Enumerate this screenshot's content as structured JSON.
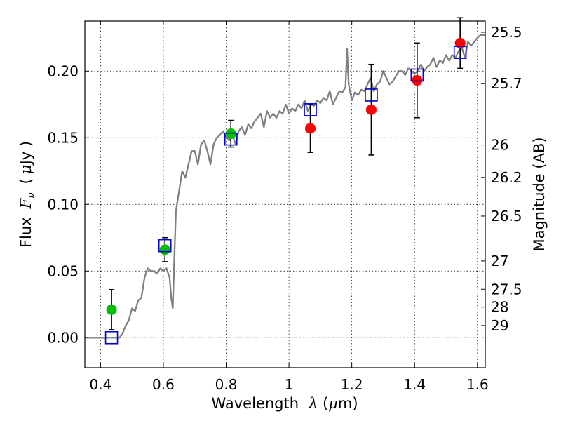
{
  "chart_data": {
    "type": "scatter",
    "title": "",
    "x_axis": {
      "label_prefix": "Wavelength",
      "symbol": "λ",
      "unit_open": " (",
      "unit_mu": "μ",
      "unit_close": "m)",
      "range": [
        0.35,
        1.625
      ],
      "ticks": [
        0.4,
        0.6,
        0.8,
        1.0,
        1.2,
        1.4,
        1.6
      ],
      "tick_labels": [
        "0.4",
        "0.6",
        "0.8",
        "1",
        "1.2",
        "1.4",
        "1.6"
      ]
    },
    "y_axis": {
      "label_prefix": "Flux",
      "symbol": "F",
      "symbol_sub": "ν",
      "unit_open": "(",
      "unit_mu": "μ",
      "unit_close": "Jy )",
      "range": [
        -0.0225,
        0.2375
      ],
      "ticks": [
        0.0,
        0.05,
        0.1,
        0.15,
        0.2
      ],
      "tick_labels": [
        "0.00",
        "0.05",
        "0.10",
        "0.15",
        "0.20"
      ]
    },
    "y2_axis": {
      "label": "Magnitude (AB)",
      "tick_mags": [
        25.5,
        25.7,
        26,
        26.2,
        26.5,
        27,
        27.5,
        28,
        29
      ],
      "tick_labels": [
        "25.5",
        "25.7",
        "26",
        "26.2",
        "26.5",
        "27",
        "27.5",
        "28",
        "29"
      ]
    },
    "grid": true,
    "zero_line": true,
    "colors": {
      "spectrum": "#808080",
      "optical_obs": "#00c000",
      "nir_obs": "#ff0000",
      "model_box": "#0000cc",
      "errorbar": "#000000"
    },
    "series": [
      {
        "name": "model spectrum",
        "kind": "line",
        "x": [
          0.35,
          0.37,
          0.39,
          0.41,
          0.43,
          0.45,
          0.46,
          0.47,
          0.48,
          0.49,
          0.5,
          0.51,
          0.52,
          0.53,
          0.54,
          0.55,
          0.56,
          0.57,
          0.58,
          0.59,
          0.6,
          0.61,
          0.62,
          0.625,
          0.63,
          0.635,
          0.64,
          0.65,
          0.66,
          0.67,
          0.68,
          0.69,
          0.7,
          0.71,
          0.72,
          0.73,
          0.74,
          0.75,
          0.76,
          0.77,
          0.78,
          0.79,
          0.8,
          0.81,
          0.82,
          0.83,
          0.84,
          0.85,
          0.86,
          0.87,
          0.88,
          0.89,
          0.9,
          0.91,
          0.92,
          0.93,
          0.94,
          0.95,
          0.96,
          0.97,
          0.98,
          0.99,
          1.0,
          1.01,
          1.02,
          1.03,
          1.04,
          1.05,
          1.06,
          1.07,
          1.08,
          1.09,
          1.1,
          1.11,
          1.12,
          1.13,
          1.14,
          1.15,
          1.16,
          1.17,
          1.18,
          1.185,
          1.19,
          1.2,
          1.21,
          1.22,
          1.23,
          1.24,
          1.25,
          1.26,
          1.27,
          1.28,
          1.29,
          1.3,
          1.31,
          1.32,
          1.33,
          1.34,
          1.35,
          1.36,
          1.37,
          1.38,
          1.39,
          1.4,
          1.41,
          1.42,
          1.43,
          1.44,
          1.45,
          1.46,
          1.47,
          1.48,
          1.49,
          1.5,
          1.51,
          1.52,
          1.53,
          1.54,
          1.55,
          1.56,
          1.57,
          1.58,
          1.59,
          1.6,
          1.61,
          1.625
        ],
        "y": [
          0.0,
          0.0,
          0.0,
          0.0,
          0.0,
          0.0,
          0.0,
          0.003,
          0.009,
          0.013,
          0.022,
          0.02,
          0.028,
          0.03,
          0.045,
          0.052,
          0.05,
          0.05,
          0.048,
          0.052,
          0.05,
          0.052,
          0.045,
          0.03,
          0.022,
          0.06,
          0.095,
          0.11,
          0.125,
          0.12,
          0.13,
          0.14,
          0.14,
          0.13,
          0.145,
          0.148,
          0.14,
          0.13,
          0.145,
          0.15,
          0.152,
          0.155,
          0.15,
          0.148,
          0.152,
          0.145,
          0.155,
          0.158,
          0.152,
          0.16,
          0.157,
          0.162,
          0.165,
          0.168,
          0.158,
          0.17,
          0.165,
          0.168,
          0.165,
          0.17,
          0.168,
          0.175,
          0.168,
          0.172,
          0.17,
          0.175,
          0.172,
          0.178,
          0.17,
          0.175,
          0.174,
          0.178,
          0.176,
          0.18,
          0.178,
          0.185,
          0.175,
          0.18,
          0.185,
          0.184,
          0.188,
          0.217,
          0.19,
          0.178,
          0.184,
          0.182,
          0.186,
          0.185,
          0.19,
          0.195,
          0.185,
          0.19,
          0.192,
          0.2,
          0.195,
          0.19,
          0.192,
          0.196,
          0.2,
          0.2,
          0.197,
          0.202,
          0.2,
          0.198,
          0.2,
          0.205,
          0.2,
          0.203,
          0.205,
          0.21,
          0.203,
          0.208,
          0.206,
          0.212,
          0.208,
          0.212,
          0.21,
          0.215,
          0.218,
          0.21,
          0.222,
          0.219,
          0.222,
          0.225,
          0.227,
          0.227
        ]
      },
      {
        "name": "observed optical",
        "kind": "points",
        "x": [
          0.435,
          0.605,
          0.815
        ],
        "y": [
          0.021,
          0.066,
          0.153
        ],
        "err": [
          0.015,
          0.009,
          0.01
        ]
      },
      {
        "name": "observed near-IR",
        "kind": "points",
        "x": [
          1.068,
          1.262,
          1.408,
          1.545
        ],
        "y": [
          0.157,
          0.171,
          0.193,
          0.221
        ],
        "err": [
          0.018,
          0.034,
          0.028,
          0.019
        ]
      },
      {
        "name": "model synthetic photometry",
        "kind": "boxes",
        "x": [
          0.435,
          0.605,
          0.815,
          1.068,
          1.262,
          1.408,
          1.545
        ],
        "y": [
          0.0,
          0.069,
          0.149,
          0.171,
          0.182,
          0.197,
          0.214
        ]
      }
    ]
  }
}
